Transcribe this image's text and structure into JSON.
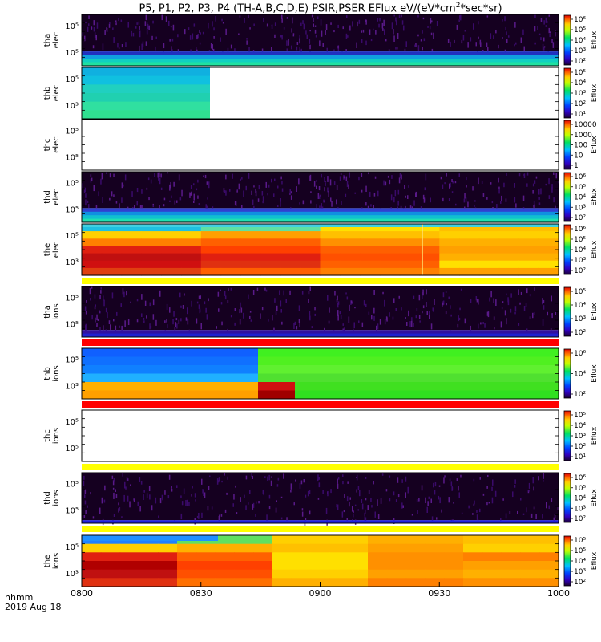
{
  "title": "P5, P1, P2, P3, P4 (TH-A,B,C,D,E) PSIR,PSER EFlux eV/(eV*cm",
  "title_sup": "2",
  "title_tail": "*sec*sr)",
  "colors": {
    "dark_purple": "#3a0a4a",
    "blue": "#2060ff",
    "cyan": "#10d0e0",
    "green": "#30e020",
    "yellow": "#ffe000",
    "orange": "#ff8000",
    "red": "#e01010",
    "dark_red": "#a00000",
    "flag_red": "#ff0000",
    "flag_yellow": "#ffff00"
  },
  "x_label_line1": "hhmm",
  "x_label_line2": "2019 Aug 18",
  "chart_data": {
    "type": "heatmap",
    "title": "P5, P1, P2, P3, P4 (TH-A,B,C,D,E) PSIR,PSER EFlux eV/(eV*cm^2*sec*sr)",
    "x_ticks": [
      "0800",
      "0830",
      "0900",
      "0930",
      "1000"
    ],
    "xlim": [
      "08:00",
      "10:00"
    ],
    "grid": false,
    "panels": [
      {
        "label": "tha elec",
        "y_ticks": [
          "10⁵",
          "10⁵"
        ],
        "colorbar_ticks": [
          "10⁶",
          "10⁵",
          "10⁴",
          "10³",
          "10²"
        ],
        "colorbar_label": "Eflux",
        "flag_bar": null
      },
      {
        "label": "thb elec",
        "y_ticks": [
          "10⁵",
          "10³"
        ],
        "colorbar_ticks": [
          "10⁵",
          "10⁴",
          "10³",
          "10²",
          "10¹"
        ],
        "colorbar_label": "Eflux",
        "flag_bar": null
      },
      {
        "label": "thc elec",
        "y_ticks": [
          "10⁵",
          "10⁵"
        ],
        "colorbar_ticks": [
          "10000",
          "1000",
          "100",
          "10",
          "1"
        ],
        "colorbar_label": "Eflux",
        "flag_bar": null
      },
      {
        "label": "thd elec",
        "y_ticks": [
          "10⁵",
          "10⁵"
        ],
        "colorbar_ticks": [
          "10⁶",
          "10⁵",
          "10⁴",
          "10³",
          "10²"
        ],
        "colorbar_label": "Eflux",
        "flag_bar": null
      },
      {
        "label": "the elec",
        "y_ticks": [
          "10⁵",
          "10³"
        ],
        "colorbar_ticks": [
          "10⁶",
          "10⁵",
          "10⁴",
          "10³",
          "10²"
        ],
        "colorbar_label": "Eflux",
        "flag_bar": "yellow"
      },
      {
        "label": "tha ions",
        "y_ticks": [
          "10⁵",
          "10⁵"
        ],
        "colorbar_ticks": [
          "10⁵",
          "10⁴",
          "10³",
          "10²"
        ],
        "colorbar_label": "Eflux",
        "flag_bar": "red"
      },
      {
        "label": "thb ions",
        "y_ticks": [
          "10⁵",
          "10³"
        ],
        "colorbar_ticks": [
          "10⁶",
          "10⁴",
          "10²"
        ],
        "colorbar_label": "Eflux",
        "flag_bar": "red"
      },
      {
        "label": "thc ions",
        "y_ticks": [
          "10⁵",
          "10⁵"
        ],
        "colorbar_ticks": [
          "10⁵",
          "10⁴",
          "10³",
          "10²",
          "10¹"
        ],
        "colorbar_label": "Eflux",
        "flag_bar": "yellow"
      },
      {
        "label": "thd ions",
        "y_ticks": [
          "10⁵",
          "10⁵"
        ],
        "colorbar_ticks": [
          "10⁶",
          "10⁵",
          "10⁴",
          "10³",
          "10²"
        ],
        "colorbar_label": "Eflux",
        "flag_bar": "yellow"
      },
      {
        "label": "the ions",
        "y_ticks": [
          "10⁵",
          "10³"
        ],
        "colorbar_ticks": [
          "10⁵",
          "10⁵",
          "10⁴",
          "10³",
          "10²"
        ],
        "colorbar_label": "Eflux",
        "flag_bar": null
      }
    ]
  }
}
